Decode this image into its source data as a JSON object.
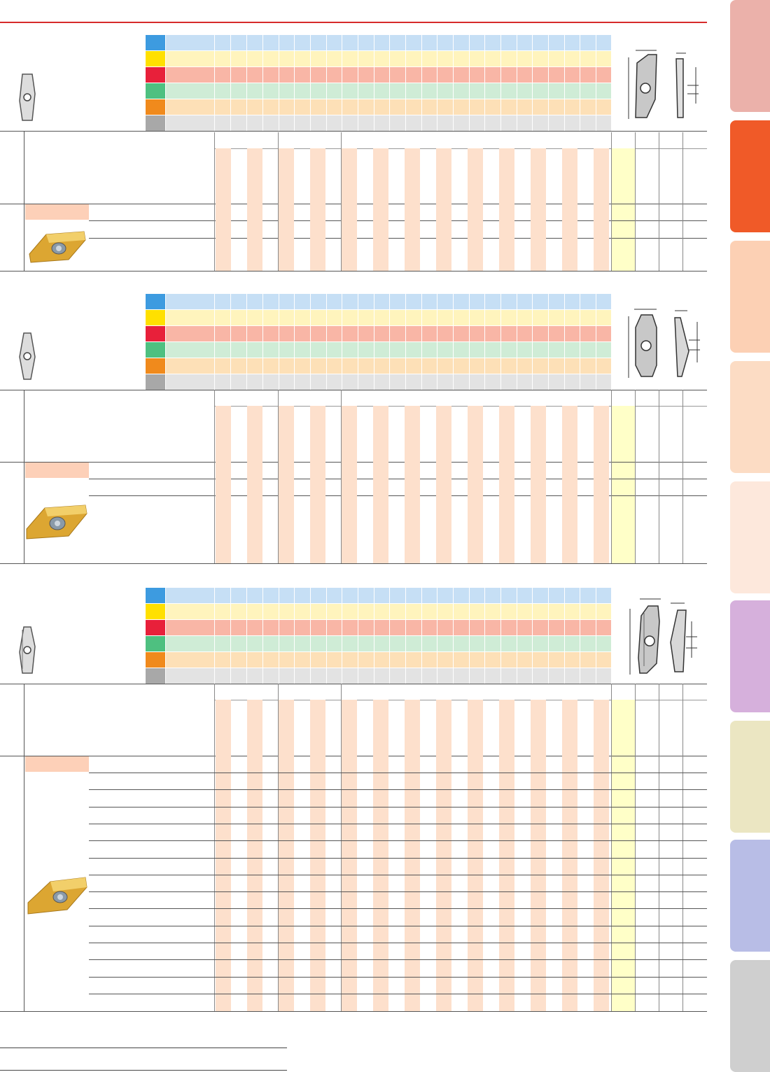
{
  "page": {
    "sections": [
      {
        "id": "section-1"
      },
      {
        "id": "section-2"
      },
      {
        "id": "section-3"
      }
    ]
  },
  "colors": {
    "header_line": "#d62a2a",
    "band_p": "#c6dff5",
    "band_m": "#fff4bd",
    "band_k": "#f9b6a6",
    "band_n": "#cfecd6",
    "band_s": "#fde0b7",
    "band_h": "#e3e3e3",
    "chip_p": "#3d9be0",
    "chip_m": "#ffe000",
    "chip_k": "#e8203a",
    "chip_n": "#4ec080",
    "chip_s": "#f08a1c",
    "chip_h": "#a8a8a8",
    "grade_stripe": "#fde0cc",
    "stock_strip": "#ffffc8"
  },
  "side_tabs": [
    {
      "name": "tab-1",
      "color": "#ebb1aa"
    },
    {
      "name": "tab-2",
      "color": "#f05a28"
    },
    {
      "name": "tab-3",
      "color": "#fcd0b4"
    },
    {
      "name": "tab-4",
      "color": "#fcdcc4"
    },
    {
      "name": "tab-5",
      "color": "#fde8dc"
    },
    {
      "name": "tab-6",
      "color": "#d6b0dc"
    },
    {
      "name": "tab-7",
      "color": "#ebe6c2"
    },
    {
      "name": "tab-8",
      "color": "#b8bde6"
    },
    {
      "name": "tab-9",
      "color": "#cfcfcf"
    }
  ],
  "icons": {
    "insert_outline": "insert-outline-icon",
    "insert_photo": "insert-photo-icon",
    "dimension_drawing": "dimension-drawing-icon"
  }
}
